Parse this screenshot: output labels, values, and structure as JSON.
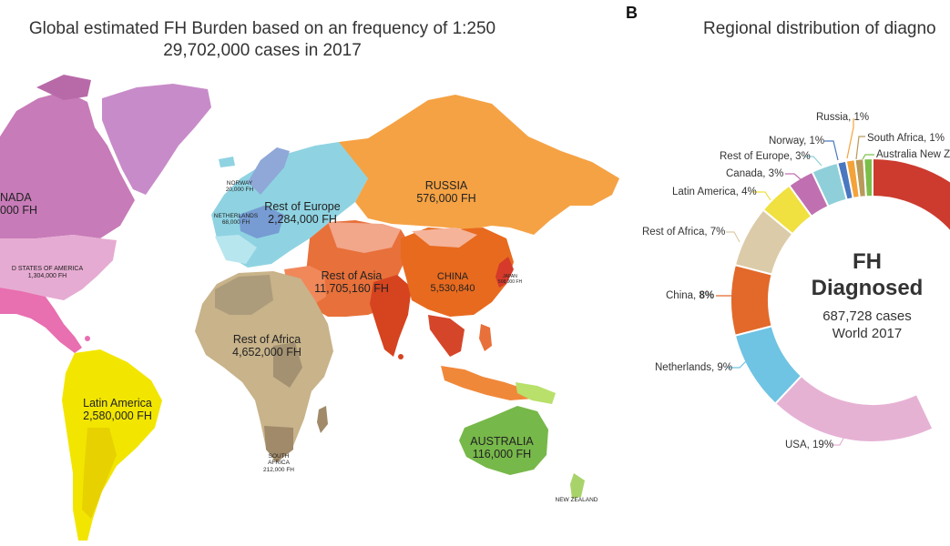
{
  "panel_a": {
    "title_line1": "Global estimated FH Burden based on an frequency of 1:250",
    "title_line2": "29,702,000 cases in 2017",
    "regions": {
      "canada": {
        "name": "NADA",
        "value": "000 FH",
        "color": "#c77bb8"
      },
      "usa": {
        "name": "D STATES OF AMERICA",
        "value": "1,304,000 FH",
        "color": "#e3a9d0"
      },
      "greenland": {
        "color": "#c58bc7"
      },
      "mexico": {
        "color": "#e86fb0"
      },
      "latin_america": {
        "name": "Latin America",
        "value": "2,580,000 FH",
        "color": "#f2e600"
      },
      "norway": {
        "name": "NORWAY",
        "value": "20,000 FH",
        "color": "#8fa8d8"
      },
      "netherlands": {
        "name": "NETHERLANDS",
        "value": "68,000 FH",
        "color": "#6f8fd0"
      },
      "rest_of_europe": {
        "name": "Rest of Europe",
        "value": "2,284,000 FH",
        "color": "#8fd3e2"
      },
      "russia": {
        "name": "RUSSIA",
        "value": "576,000 FH",
        "color": "#f5a244"
      },
      "rest_of_asia": {
        "name": "Rest of Asia",
        "value": "11,705,160 FH",
        "color": "#e8703a"
      },
      "china": {
        "name": "CHINA",
        "value": "5,530,840",
        "color": "#e86a1e"
      },
      "japan": {
        "name": "JAPAN",
        "value": "508,000 FH",
        "color": "#d53a2a"
      },
      "rest_of_africa": {
        "name": "Rest of Africa",
        "value": "4,652,000 FH",
        "color": "#c8b38a"
      },
      "south_africa": {
        "name_line1": "SOUTH",
        "name_line2": "AFRICA",
        "value": "212,000 FH",
        "color": "#a08a6a"
      },
      "australia": {
        "name": "AUSTRALIA",
        "value": "116,000 FH",
        "color": "#77b84a"
      },
      "new_zealand": {
        "name": "NEW ZEALAND",
        "color": "#a8d36a"
      }
    }
  },
  "panel_b": {
    "letter": "B",
    "title": "Regional distribution of diagno",
    "center_line1": "FH",
    "center_line2": "Diagnosed",
    "center_line3": "687,728 cases",
    "center_line4": "World 2017",
    "chart_data": {
      "type": "pie",
      "variant": "donut",
      "slices": [
        {
          "label": "Australia New Z",
          "value": 1,
          "color": "#7bbf4a"
        },
        {
          "label": "South Africa, 1",
          "value": 1,
          "color": "#b89a5a"
        },
        {
          "label": "Russia",
          "value": 1,
          "color": "#f4a33a"
        },
        {
          "label": "Norway",
          "value": 1,
          "color": "#4a78c0"
        },
        {
          "label": "Rest of Europe",
          "value": 3,
          "color": "#8fcfda"
        },
        {
          "label": "Canada",
          "value": 3,
          "color": "#c070b0"
        },
        {
          "label": "Latin America",
          "value": 4,
          "color": "#f0e040"
        },
        {
          "label": "Rest of Africa",
          "value": 7,
          "color": "#dccba8"
        },
        {
          "label": "China",
          "value": 8,
          "color": "#e2692a"
        },
        {
          "label": "Netherlands",
          "value": 9,
          "color": "#6fc3e3"
        },
        {
          "label": "USA",
          "value": 19,
          "color": "#e6b2d4"
        }
      ],
      "labels": {
        "australia": "Australia New Z",
        "south_africa": "South Africa, 1%",
        "russia": "Russia, 1%",
        "norway": "Norway, 1%",
        "rest_of_europe": "Rest of Europe, 3%",
        "canada": "Canada, 3%",
        "latin_america": "Latin America, 4%",
        "rest_of_africa": "Rest of Africa, 7%",
        "china_name": "China,",
        "china_pct": "8%",
        "netherlands": "Netherlands, 9%",
        "usa": "USA, 19%"
      }
    }
  }
}
